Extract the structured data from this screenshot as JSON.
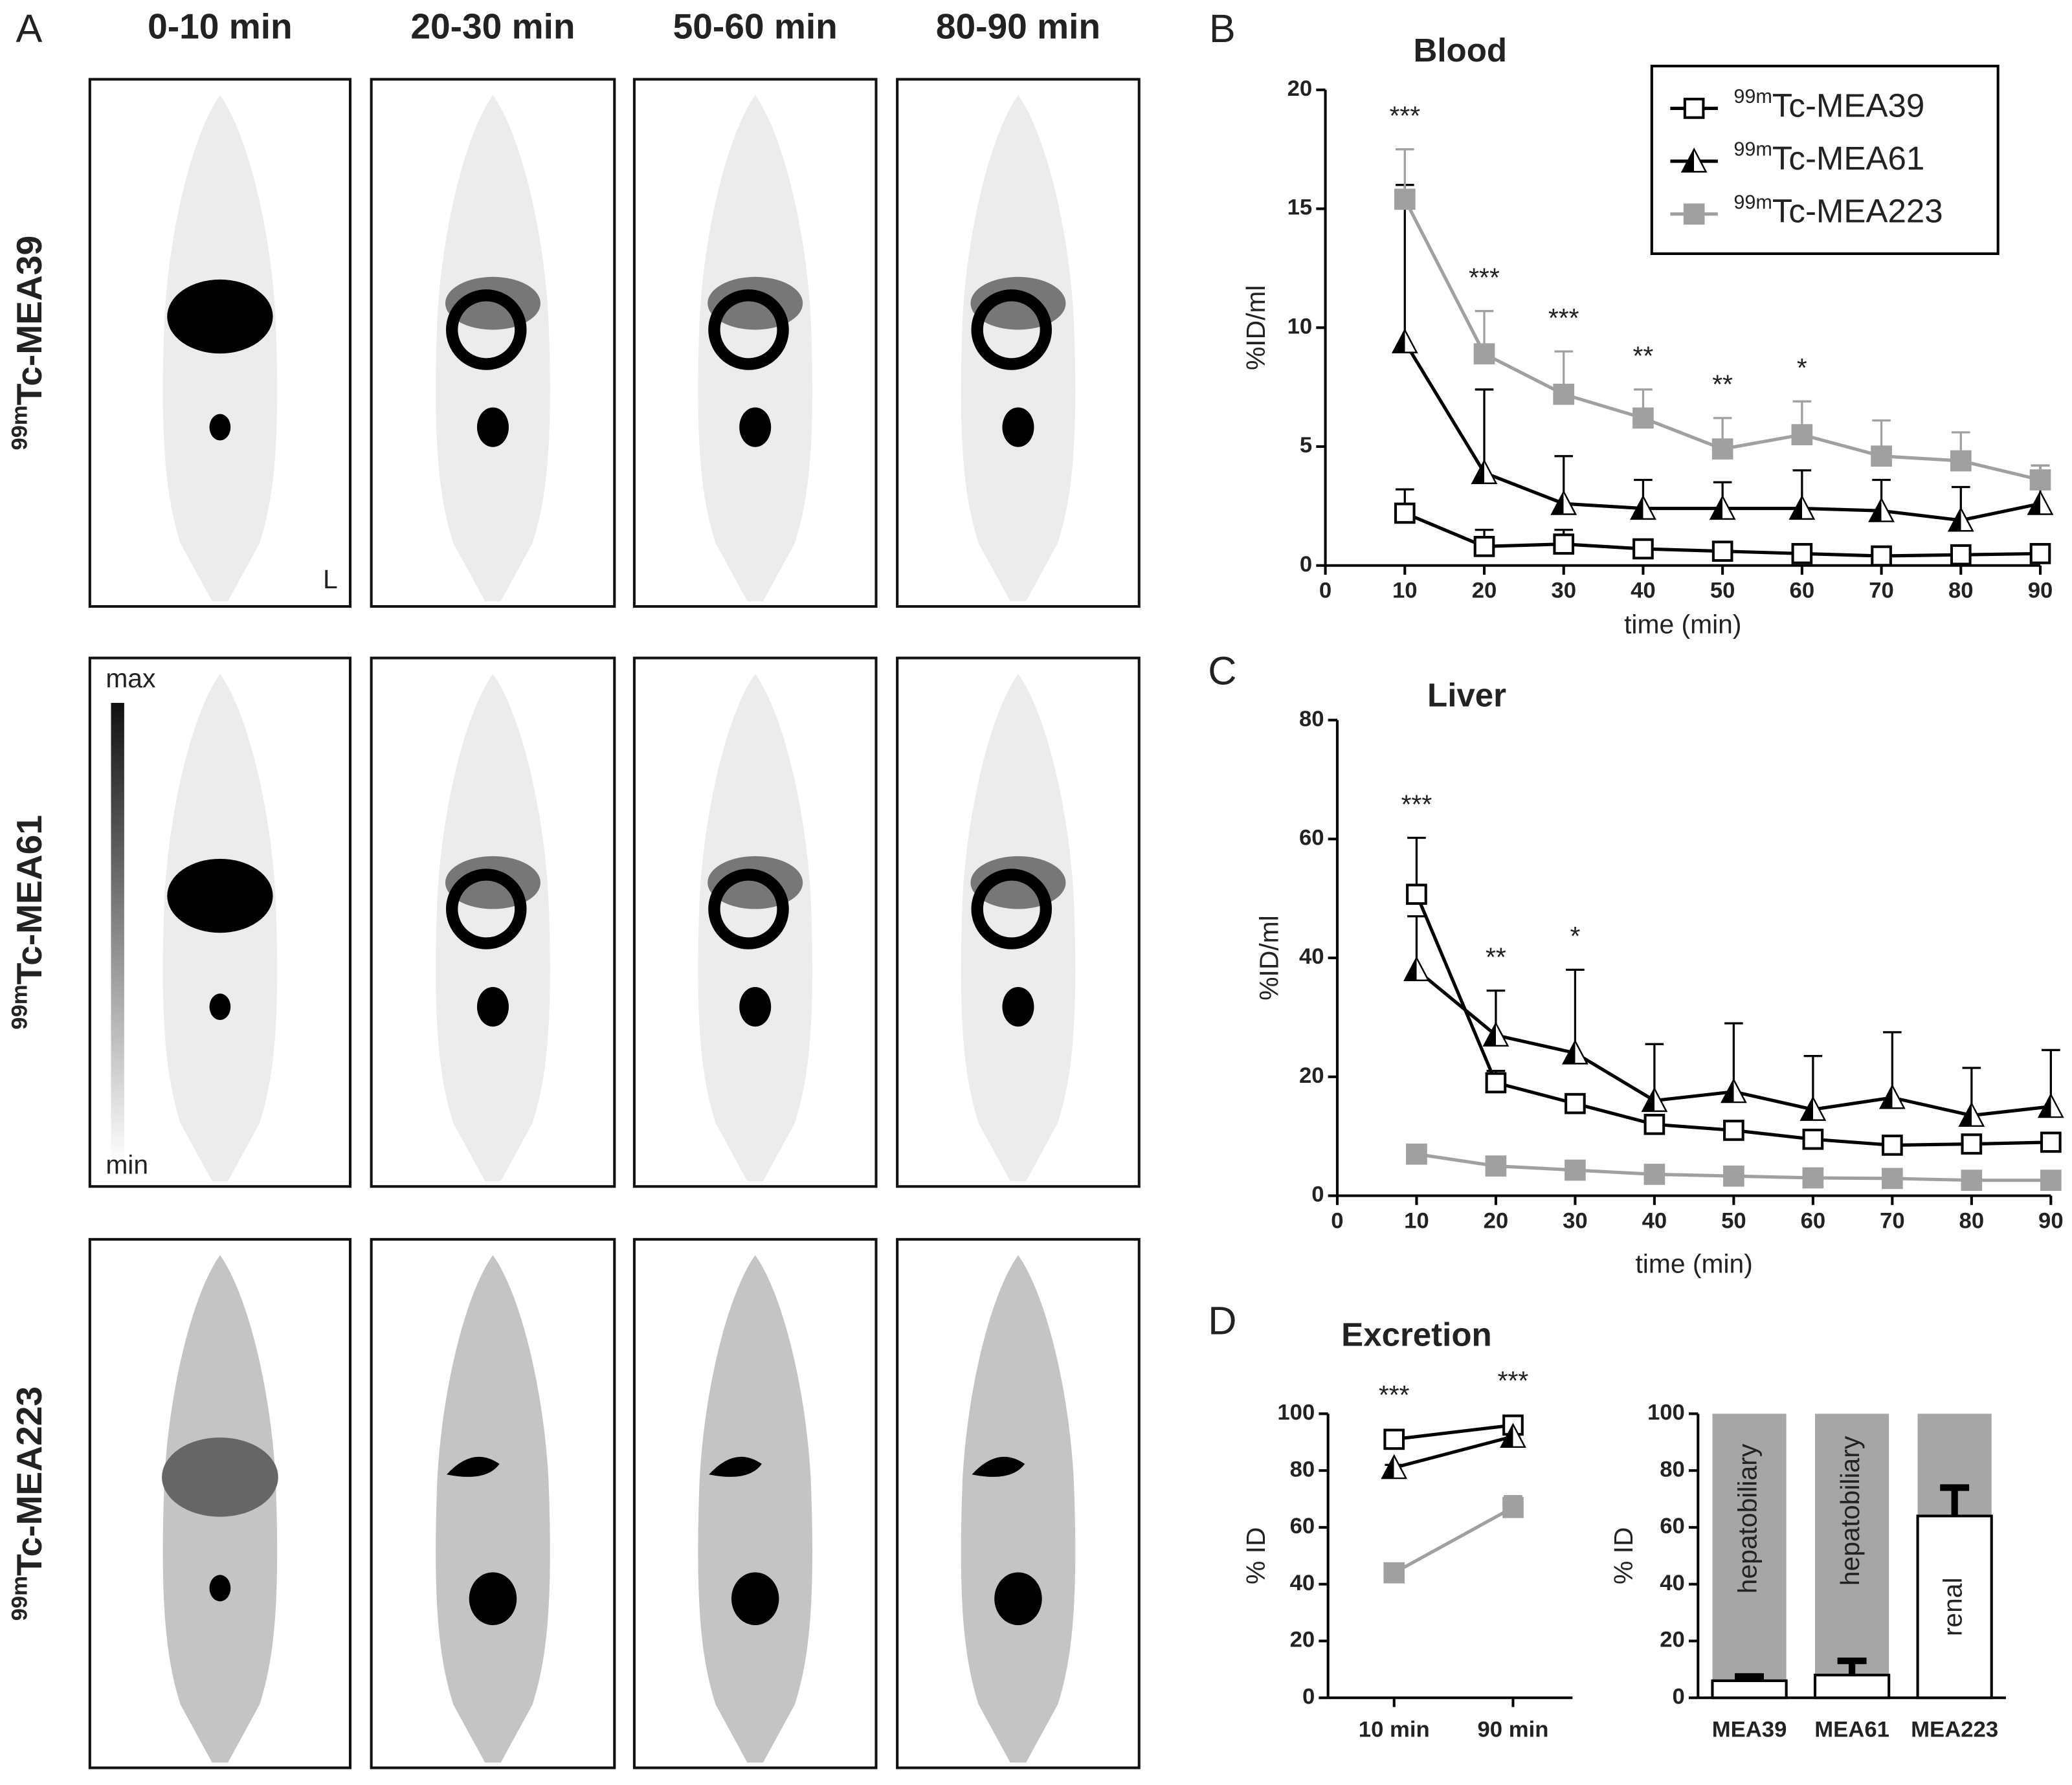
{
  "isotope": "99m",
  "panel_labels": [
    "A",
    "B",
    "C",
    "D"
  ],
  "images": {
    "columns": [
      "0-10 min",
      "20-30 min",
      "50-60 min",
      "80-90 min"
    ],
    "rows": [
      "Tc-MEA39",
      "Tc-MEA61",
      "Tc-MEA223"
    ],
    "orientation": "L",
    "scale_max": "max",
    "scale_min": "min"
  },
  "chart_data": [
    {
      "type": "line",
      "title": "Blood",
      "x_label": "time (min)",
      "y_label": "%ID/ml",
      "x": [
        10,
        20,
        30,
        40,
        50,
        60,
        70,
        80,
        90
      ],
      "xlim": [
        0,
        90
      ],
      "xticks": [
        0,
        10,
        20,
        30,
        40,
        50,
        60,
        70,
        80,
        90
      ],
      "ylim": [
        0,
        20
      ],
      "yticks": [
        0,
        5,
        10,
        15,
        20
      ],
      "legend": "upper right",
      "series": [
        {
          "name": "Tc-MEA39",
          "color": "#000000",
          "marker": "open-square",
          "values": [
            2.2,
            0.8,
            0.9,
            0.7,
            0.6,
            0.5,
            0.4,
            0.45,
            0.5
          ],
          "errors": [
            1.0,
            0.7,
            0.6,
            0.3,
            0.3,
            0.2,
            0.3,
            0.2,
            0.2
          ]
        },
        {
          "name": "Tc-MEA61",
          "color": "#000000",
          "marker": "half-triangle",
          "values": [
            9.4,
            3.9,
            2.6,
            2.4,
            2.4,
            2.4,
            2.3,
            1.9,
            2.6
          ],
          "errors": [
            6.6,
            3.5,
            2.0,
            1.2,
            1.1,
            1.6,
            1.3,
            1.4,
            1.6
          ]
        },
        {
          "name": "Tc-MEA223",
          "color": "#a0a0a0",
          "marker": "filled-square",
          "values": [
            15.4,
            8.9,
            7.2,
            6.2,
            4.9,
            5.5,
            4.6,
            4.4,
            3.6
          ],
          "errors": [
            2.1,
            1.8,
            1.8,
            1.2,
            1.3,
            1.4,
            1.5,
            1.2,
            0.6
          ]
        }
      ],
      "annotations": [
        {
          "x": 10,
          "text": "***"
        },
        {
          "x": 20,
          "text": "***"
        },
        {
          "x": 30,
          "text": "***"
        },
        {
          "x": 40,
          "text": "**"
        },
        {
          "x": 50,
          "text": "**"
        },
        {
          "x": 60,
          "text": "*"
        }
      ]
    },
    {
      "type": "line",
      "title": "Liver",
      "x_label": "time (min)",
      "y_label": "%ID/ml",
      "x": [
        10,
        20,
        30,
        40,
        50,
        60,
        70,
        80,
        90
      ],
      "xlim": [
        0,
        90
      ],
      "xticks": [
        0,
        10,
        20,
        30,
        40,
        50,
        60,
        70,
        80,
        90
      ],
      "ylim": [
        0,
        80
      ],
      "yticks": [
        0,
        20,
        40,
        60,
        80
      ],
      "series": [
        {
          "name": "Tc-MEA39",
          "color": "#000000",
          "marker": "open-square",
          "values": [
            50.7,
            19,
            15.5,
            12,
            11,
            9.5,
            8.5,
            8.7,
            9
          ],
          "errors": [
            9.5,
            2,
            1.5,
            1,
            1,
            1,
            1.5,
            1,
            1
          ]
        },
        {
          "name": "Tc-MEA61",
          "color": "#000000",
          "marker": "half-triangle",
          "values": [
            38,
            27,
            24,
            16,
            17.5,
            14.5,
            16.5,
            13.5,
            15
          ],
          "errors": [
            9,
            7.5,
            14,
            9.5,
            11.5,
            9,
            11,
            8,
            9.5
          ]
        },
        {
          "name": "Tc-MEA223",
          "color": "#a0a0a0",
          "marker": "filled-square",
          "values": [
            7,
            5,
            4.3,
            3.6,
            3.3,
            3,
            2.9,
            2.6,
            2.6
          ],
          "errors": [
            0.5,
            0.5,
            0.4,
            0.4,
            0.3,
            0.3,
            0.3,
            0.3,
            0.3
          ]
        }
      ],
      "annotations": [
        {
          "x": 10,
          "text": "***"
        },
        {
          "x": 20,
          "text": "**"
        },
        {
          "x": 30,
          "text": "*"
        }
      ]
    },
    {
      "type": "line",
      "title": "Excretion",
      "y_label": "% ID",
      "categories": [
        "10 min",
        "90 min"
      ],
      "ylim": [
        0,
        100
      ],
      "yticks": [
        0,
        20,
        40,
        60,
        80,
        100
      ],
      "series": [
        {
          "name": "Tc-MEA39",
          "color": "#000000",
          "marker": "open-square",
          "values": [
            91,
            96
          ],
          "errors": [
            1,
            1
          ]
        },
        {
          "name": "Tc-MEA61",
          "color": "#000000",
          "marker": "half-triangle",
          "values": [
            81,
            92
          ],
          "errors": [
            1,
            1
          ]
        },
        {
          "name": "Tc-MEA223",
          "color": "#a0a0a0",
          "marker": "filled-square",
          "values": [
            44,
            67
          ],
          "errors": [
            1,
            4
          ]
        }
      ],
      "annotations": [
        {
          "category": 0,
          "text": "***"
        },
        {
          "category": 1,
          "text": "***"
        }
      ]
    },
    {
      "type": "bar",
      "y_label": "% ID",
      "categories": [
        "MEA39",
        "MEA61",
        "MEA223"
      ],
      "values": [
        6,
        8,
        64
      ],
      "errors": [
        1.5,
        5,
        10
      ],
      "color": "#ffffff",
      "background_color": "#a6a6a6",
      "bar_labels": [
        "hepatobiliary",
        "hepatobiliary",
        "renal"
      ],
      "ylim": [
        0,
        100
      ],
      "yticks": [
        0,
        20,
        40,
        60,
        80,
        100
      ]
    }
  ]
}
